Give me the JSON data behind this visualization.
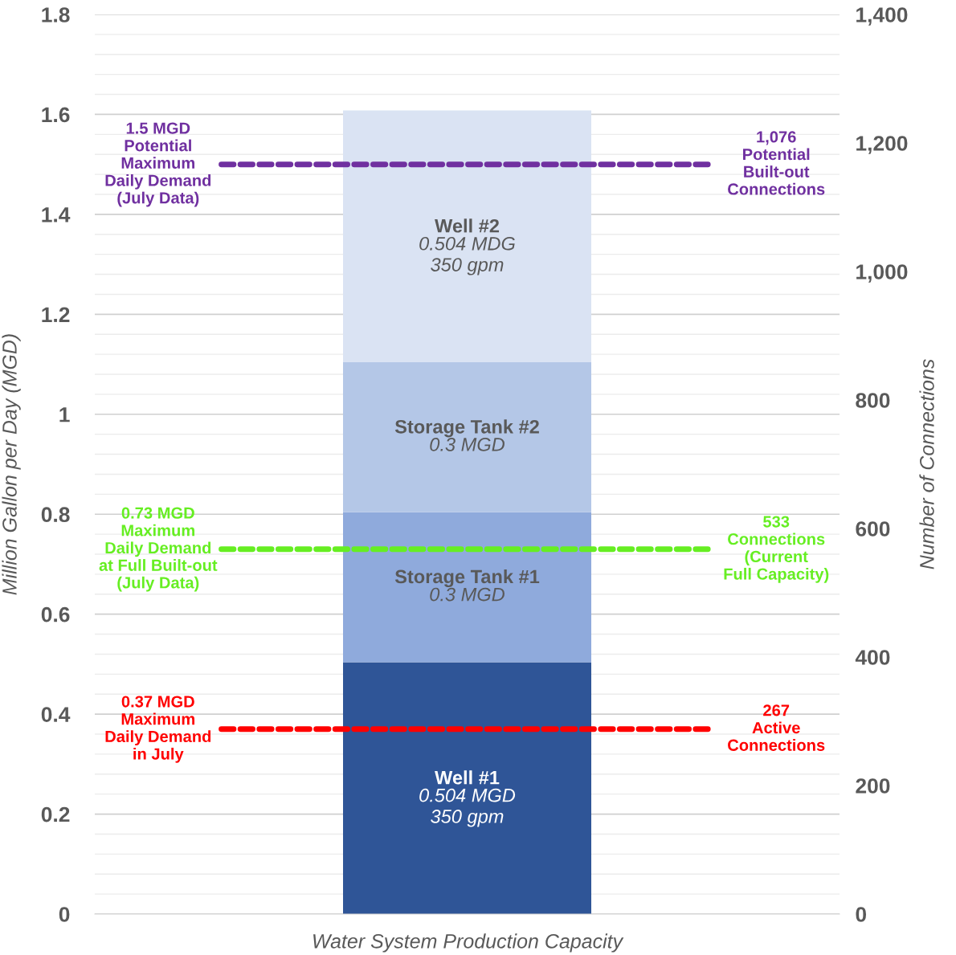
{
  "chart_data": {
    "type": "bar",
    "stacked": true,
    "categories": [
      null
    ],
    "xlabel": "Water System Production Capacity",
    "ylabel": "Million Gallon per Day (MGD)",
    "y2label": "Number of Connections",
    "series": [
      {
        "name": "Well #1",
        "color": "#2f5597",
        "values": [
          0.504
        ],
        "value_labels": [
          "0.504 MGD\n350 gpm"
        ]
      },
      {
        "name": "Storage Tank #1",
        "color": "#8faadc",
        "values": [
          0.3
        ],
        "value_labels": [
          "0.3 MGD"
        ]
      },
      {
        "name": "Storage Tank #2",
        "color": "#b4c7e7",
        "values": [
          0.3
        ],
        "value_labels": [
          "0.3 MGD"
        ]
      },
      {
        "name": "Well #2",
        "color": "#dae3f3",
        "values": [
          0.504
        ],
        "value_labels": [
          "0.504 MDG\n350 gpm"
        ]
      }
    ],
    "ylim": [
      0,
      1.8
    ],
    "yticks": [
      0,
      0.2,
      0.4,
      0.6,
      0.8,
      1,
      1.2,
      1.4,
      1.6,
      1.8
    ],
    "y2lim": [
      0,
      1400
    ],
    "y2ticks": [
      0,
      200,
      400,
      600,
      800,
      {
        "value": 1000,
        "label": "1,000"
      },
      {
        "value": 1200,
        "label": "1,200"
      },
      {
        "value": 1400,
        "label": "1,400"
      }
    ],
    "grid": "y",
    "ref_lines": [
      {
        "axis": "y",
        "value": 0.37,
        "label": "0.37 MGD\nMaximum\nDaily Demand\nin July",
        "color": "#ff0000",
        "line_style": "dashed"
      },
      {
        "axis": "y",
        "value": 0.73,
        "label": "0.73 MGD\nMaximum\nDaily Demand\nat Full Built-out\n(July Data)",
        "color": "#66ee22",
        "line_style": "dashed"
      },
      {
        "axis": "y",
        "value": 1.5,
        "label": "1.5 MGD\nPotential\nMaximum\nDaily Demand\n(July Data)",
        "color": "#7030a0",
        "line_style": "dashed"
      }
    ],
    "annotations": [
      "267\nActive\nConnections",
      "533\nConnections\n(Current\nFull Capacity)",
      "1,076\nPotential\nBuilt-out\nConnections"
    ]
  }
}
